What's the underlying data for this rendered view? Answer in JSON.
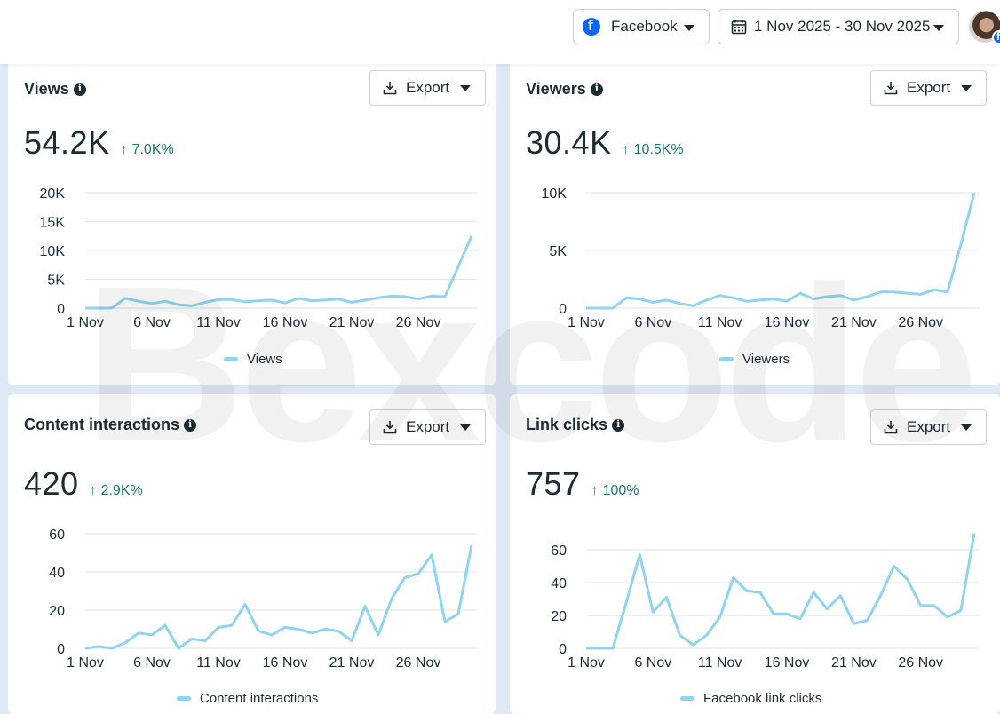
{
  "header": {
    "platform_selector": {
      "label": "Facebook",
      "icon": "facebook-icon"
    },
    "date_range_selector": {
      "label": "1 Nov 2025 - 30 Nov 2025",
      "icon": "calendar-icon"
    },
    "avatar": {
      "badge_icon": "facebook-icon"
    }
  },
  "watermark": "Bexcode",
  "panels": [
    {
      "title": "Views",
      "export_label": "Export",
      "value": "54.2K",
      "change": "7.0K%",
      "change_direction": "up",
      "legend": "Views"
    },
    {
      "title": "Viewers",
      "export_label": "Export",
      "value": "30.4K",
      "change": "10.5K%",
      "change_direction": "up",
      "legend": "Viewers"
    },
    {
      "title": "Content interactions",
      "export_label": "Export",
      "value": "420",
      "change": "2.9K%",
      "change_direction": "up",
      "legend": "Content interactions"
    },
    {
      "title": "Link clicks",
      "export_label": "Export",
      "value": "757",
      "change": "100%",
      "change_direction": "up",
      "legend": "Facebook link clicks"
    }
  ],
  "colors": {
    "line": "#8fd3f0",
    "positive_change": "#1d7a6b",
    "facebook_blue": "#0866ff",
    "page_background": "#dfe8f5"
  },
  "chart_data": [
    {
      "type": "line",
      "title": "Views",
      "x": [
        1,
        2,
        3,
        4,
        5,
        6,
        7,
        8,
        9,
        10,
        11,
        12,
        13,
        14,
        15,
        16,
        17,
        18,
        19,
        20,
        21,
        22,
        23,
        24,
        25,
        26,
        27,
        28,
        29,
        30
      ],
      "x_tick_labels": [
        "1 Nov",
        "6 Nov",
        "11 Nov",
        "16 Nov",
        "21 Nov",
        "26 Nov"
      ],
      "y_tick_labels": [
        "0",
        "5K",
        "10K",
        "15K",
        "20K"
      ],
      "ylim": [
        0,
        20000
      ],
      "series": [
        {
          "name": "Views",
          "values": [
            0,
            0,
            0,
            1700,
            1200,
            800,
            1200,
            600,
            400,
            1000,
            1500,
            1500,
            1100,
            1300,
            1400,
            900,
            1700,
            1300,
            1400,
            1600,
            1000,
            1400,
            1800,
            2100,
            2000,
            1600,
            2100,
            2000,
            7200,
            12500
          ]
        }
      ],
      "legend_position": "bottom",
      "grid": true
    },
    {
      "type": "line",
      "title": "Viewers",
      "x": [
        1,
        2,
        3,
        4,
        5,
        6,
        7,
        8,
        9,
        10,
        11,
        12,
        13,
        14,
        15,
        16,
        17,
        18,
        19,
        20,
        21,
        22,
        23,
        24,
        25,
        26,
        27,
        28,
        29,
        30
      ],
      "x_tick_labels": [
        "1 Nov",
        "6 Nov",
        "11 Nov",
        "16 Nov",
        "21 Nov",
        "26 Nov"
      ],
      "y_tick_labels": [
        "0",
        "5K",
        "10K"
      ],
      "ylim": [
        0,
        10000
      ],
      "series": [
        {
          "name": "Viewers",
          "values": [
            0,
            0,
            0,
            900,
            800,
            500,
            700,
            400,
            200,
            700,
            1100,
            900,
            600,
            700,
            800,
            600,
            1300,
            800,
            1000,
            1100,
            700,
            1000,
            1400,
            1400,
            1300,
            1200,
            1600,
            1400,
            5500,
            10000
          ]
        }
      ],
      "legend_position": "bottom",
      "grid": true
    },
    {
      "type": "line",
      "title": "Content interactions",
      "x": [
        1,
        2,
        3,
        4,
        5,
        6,
        7,
        8,
        9,
        10,
        11,
        12,
        13,
        14,
        15,
        16,
        17,
        18,
        19,
        20,
        21,
        22,
        23,
        24,
        25,
        26,
        27,
        28,
        29,
        30
      ],
      "x_tick_labels": [
        "1 Nov",
        "6 Nov",
        "11 Nov",
        "16 Nov",
        "21 Nov",
        "26 Nov"
      ],
      "y_tick_labels": [
        "0",
        "20",
        "40",
        "60"
      ],
      "ylim": [
        0,
        60
      ],
      "series": [
        {
          "name": "Content interactions",
          "values": [
            0,
            1,
            0,
            3,
            8,
            7,
            12,
            0,
            5,
            4,
            11,
            12,
            23,
            9,
            7,
            11,
            10,
            8,
            10,
            9,
            4,
            22,
            7,
            26,
            37,
            39,
            49,
            14,
            18,
            54
          ]
        }
      ],
      "legend_position": "bottom",
      "grid": true
    },
    {
      "type": "line",
      "title": "Link clicks",
      "x": [
        1,
        2,
        3,
        4,
        5,
        6,
        7,
        8,
        9,
        10,
        11,
        12,
        13,
        14,
        15,
        16,
        17,
        18,
        19,
        20,
        21,
        22,
        23,
        24,
        25,
        26,
        27,
        28,
        29,
        30
      ],
      "x_tick_labels": [
        "1 Nov",
        "6 Nov",
        "11 Nov",
        "16 Nov",
        "21 Nov",
        "26 Nov"
      ],
      "y_tick_labels": [
        "0",
        "20",
        "40",
        "60"
      ],
      "ylim": [
        0,
        70
      ],
      "series": [
        {
          "name": "Facebook link clicks",
          "values": [
            0,
            0,
            0,
            28,
            57,
            22,
            31,
            8,
            2,
            8,
            19,
            43,
            35,
            34,
            21,
            21,
            18,
            34,
            24,
            32,
            15,
            17,
            32,
            50,
            42,
            26,
            26,
            19,
            23,
            70
          ]
        }
      ],
      "legend_position": "bottom",
      "grid": true
    }
  ]
}
